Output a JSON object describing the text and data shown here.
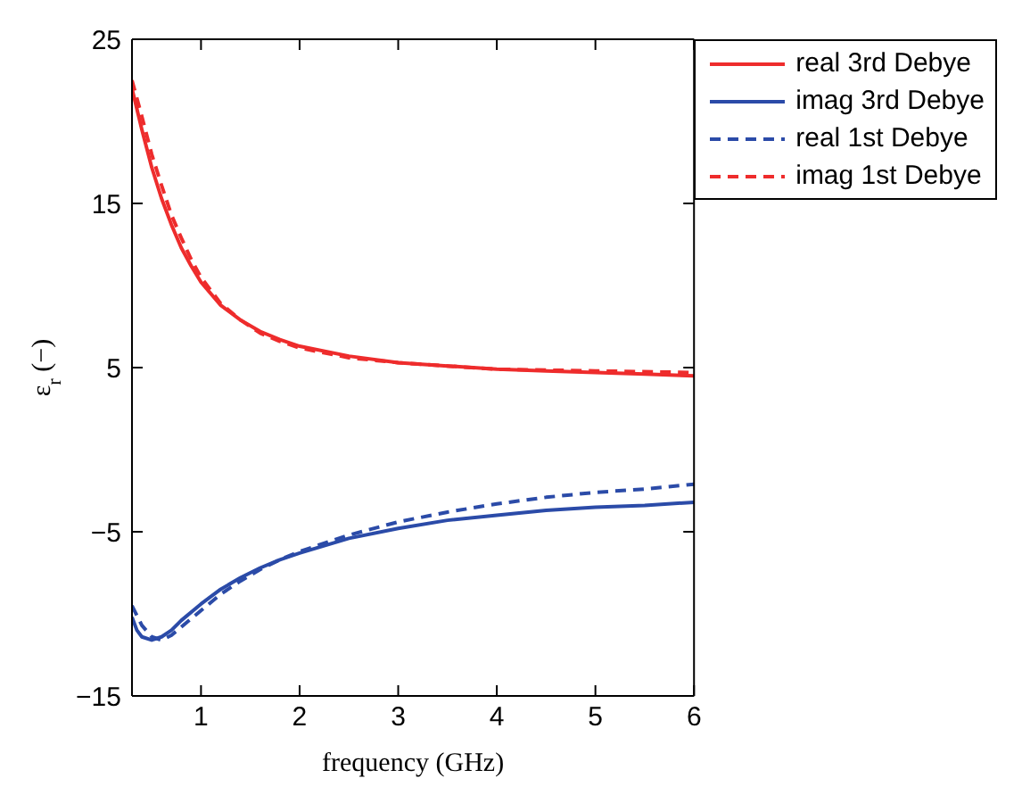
{
  "chart_data": {
    "type": "line",
    "xlabel": "frequency (GHz)",
    "ylabel": "ε$_{r}$ (−)",
    "xlim": [
      0.3,
      6
    ],
    "xticks": [
      1,
      2,
      3,
      4,
      5,
      6
    ],
    "ylim": [
      -15,
      25
    ],
    "yticks": [
      -15,
      -5,
      5,
      15,
      25
    ],
    "legend": "top right",
    "marker": "none",
    "series": [
      {
        "name": "real 3rd Debye",
        "color": "#ee2c2c",
        "line_style": "solid",
        "x": [
          0.3,
          0.4,
          0.5,
          0.6,
          0.7,
          0.8,
          0.9,
          1.0,
          1.2,
          1.4,
          1.6,
          1.8,
          2,
          2.5,
          3,
          3.5,
          4,
          4.5,
          5,
          5.5,
          6
        ],
        "values": [
          22,
          19.5,
          17.2,
          15.3,
          13.7,
          12.3,
          11.2,
          10.2,
          8.8,
          7.9,
          7.2,
          6.7,
          6.3,
          5.7,
          5.3,
          5.1,
          4.9,
          4.8,
          4.7,
          4.6,
          4.5
        ]
      },
      {
        "name": "imag 3rd Debye",
        "color": "#2b4ba8",
        "line_style": "solid",
        "x": [
          0.3,
          0.35,
          0.4,
          0.5,
          0.6,
          0.7,
          0.8,
          1.0,
          1.2,
          1.4,
          1.6,
          1.8,
          2,
          2.5,
          3,
          3.5,
          4,
          4.5,
          5,
          5.5,
          6
        ],
        "values": [
          -10.2,
          -11,
          -11.4,
          -11.6,
          -11.4,
          -11,
          -10.4,
          -9.4,
          -8.5,
          -7.8,
          -7.2,
          -6.7,
          -6.3,
          -5.4,
          -4.8,
          -4.3,
          -4,
          -3.7,
          -3.5,
          -3.4,
          -3.2
        ]
      },
      {
        "name": "real 1st Debye",
        "color": "#2b4ba8",
        "line_style": "dashed",
        "x": [
          0.3,
          0.4,
          0.5,
          0.6,
          0.7,
          0.8,
          1.0,
          1.2,
          1.4,
          1.6,
          1.8,
          2,
          2.5,
          3,
          3.5,
          4,
          4.5,
          5,
          5.5,
          6
        ],
        "values": [
          -9.5,
          -10.7,
          -11.4,
          -11.6,
          -11.3,
          -10.8,
          -9.8,
          -8.8,
          -8,
          -7.3,
          -6.7,
          -6.2,
          -5.2,
          -4.4,
          -3.8,
          -3.3,
          -2.9,
          -2.6,
          -2.4,
          -2.1
        ]
      },
      {
        "name": "imag 1st Debye",
        "color": "#ee2c2c",
        "line_style": "dashed",
        "x": [
          0.3,
          0.4,
          0.5,
          0.6,
          0.7,
          0.8,
          0.9,
          1.0,
          1.2,
          1.4,
          1.6,
          1.8,
          2,
          2.5,
          3,
          3.5,
          4,
          5,
          6
        ],
        "values": [
          22.5,
          20.3,
          18,
          16.1,
          14.3,
          12.9,
          11.6,
          10.5,
          8.9,
          7.9,
          7.1,
          6.6,
          6.2,
          5.6,
          5.3,
          5.1,
          4.9,
          4.8,
          4.7
        ]
      }
    ]
  }
}
